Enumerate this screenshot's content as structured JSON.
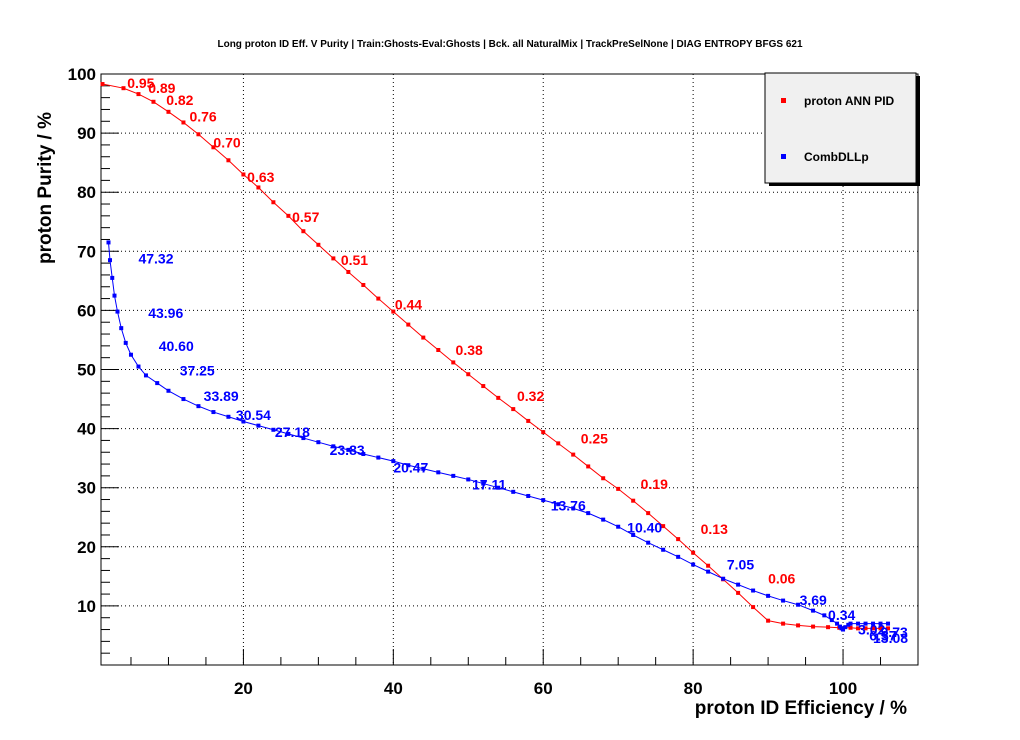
{
  "chart_data": {
    "type": "scatter",
    "title": "Long proton ID Eff. V Purity | Train:Ghosts-Eval:Ghosts | Bck. all NaturalMix | TrackPreSelNone | DIAG ENTROPY BFGS 621",
    "xlabel": "proton ID Efficiency / %",
    "ylabel": "proton Purity / %",
    "xlim": [
      1,
      110
    ],
    "ylim": [
      0,
      100
    ],
    "xticks": [
      20,
      40,
      60,
      80,
      100
    ],
    "yticks": [
      10,
      20,
      30,
      40,
      50,
      60,
      70,
      80,
      90,
      100
    ],
    "grid": true,
    "legend_position": "top-right",
    "series": [
      {
        "name": "proton ANN PID",
        "color": "#ff0000",
        "x": [
          1.2,
          4,
          6,
          8,
          10,
          12,
          14,
          16,
          18,
          20,
          22,
          24,
          26,
          28,
          30,
          32,
          34,
          36,
          38,
          40,
          42,
          44,
          46,
          48,
          50,
          52,
          54,
          56,
          58,
          60,
          62,
          64,
          66,
          68,
          70,
          72,
          74,
          76,
          78,
          80,
          82,
          84,
          86,
          88,
          90,
          92,
          94,
          96,
          98,
          99.5,
          101,
          102,
          103,
          104,
          105,
          106
        ],
        "y": [
          98.3,
          97.6,
          96.6,
          95.3,
          93.6,
          91.8,
          89.8,
          87.6,
          85.4,
          83.0,
          80.8,
          78.3,
          76.0,
          73.4,
          71.1,
          68.8,
          66.5,
          64.3,
          62.0,
          59.8,
          57.6,
          55.4,
          53.3,
          51.2,
          49.2,
          47.2,
          45.2,
          43.3,
          41.3,
          39.4,
          37.5,
          35.6,
          33.6,
          31.6,
          29.8,
          27.8,
          25.7,
          23.5,
          21.3,
          19.0,
          16.8,
          14.5,
          12.2,
          9.8,
          7.5,
          7.0,
          6.7,
          6.5,
          6.4,
          6.3,
          6.3,
          6.2,
          6.2,
          6.2,
          6.2,
          6.2
        ],
        "labels": [
          {
            "text": "0.95",
            "x": 4.5,
            "y": 98.5
          },
          {
            "text": "0.89",
            "x": 7.3,
            "y": 97.6
          },
          {
            "text": "0.82",
            "x": 9.7,
            "y": 95.6
          },
          {
            "text": "0.76",
            "x": 12.8,
            "y": 92.8
          },
          {
            "text": "0.70",
            "x": 16.0,
            "y": 88.4
          },
          {
            "text": "0.63",
            "x": 20.5,
            "y": 82.6
          },
          {
            "text": "0.57",
            "x": 26.5,
            "y": 75.8
          },
          {
            "text": "0.51",
            "x": 33.0,
            "y": 68.5
          },
          {
            "text": "0.44",
            "x": 40.2,
            "y": 61.0
          },
          {
            "text": "0.38",
            "x": 48.3,
            "y": 53.3
          },
          {
            "text": "0.32",
            "x": 56.5,
            "y": 45.5
          },
          {
            "text": "0.25",
            "x": 65.0,
            "y": 38.3
          },
          {
            "text": "0.19",
            "x": 73.0,
            "y": 30.6
          },
          {
            "text": "0.13",
            "x": 81.0,
            "y": 23.0
          },
          {
            "text": "0.06",
            "x": 90.0,
            "y": 14.6
          }
        ]
      },
      {
        "name": "CombDLLp",
        "color": "#0000ff",
        "x": [
          2.0,
          2.2,
          2.5,
          2.8,
          3.2,
          3.7,
          4.3,
          5.0,
          6.0,
          7.0,
          8.5,
          10,
          12,
          14,
          16,
          18,
          20,
          22,
          24,
          26,
          28,
          30,
          32,
          34,
          36,
          38,
          40,
          42,
          44,
          46,
          48,
          50,
          52,
          54,
          56,
          58,
          60,
          62,
          64,
          66,
          68,
          70,
          72,
          74,
          76,
          78,
          80,
          82,
          84,
          86,
          88,
          90,
          92,
          94,
          96,
          97.5,
          98.5,
          99.2,
          99.6,
          99.8,
          100,
          100.3,
          100.7,
          101,
          102,
          103,
          104,
          105,
          106
        ],
        "y": [
          71.5,
          68.5,
          65.5,
          62.5,
          59.8,
          57.0,
          54.5,
          52.5,
          50.5,
          49.0,
          47.7,
          46.4,
          45.0,
          43.8,
          42.8,
          42.0,
          41.2,
          40.5,
          39.8,
          39.1,
          38.4,
          37.7,
          37.0,
          36.4,
          35.7,
          35.1,
          34.5,
          33.8,
          33.2,
          32.6,
          32.0,
          31.4,
          30.7,
          30.0,
          29.3,
          28.6,
          27.9,
          27.2,
          26.5,
          25.7,
          24.6,
          23.4,
          22.0,
          20.7,
          19.5,
          18.3,
          17.0,
          15.8,
          14.6,
          13.6,
          12.6,
          11.7,
          10.9,
          10.2,
          9.2,
          8.4,
          7.6,
          7.0,
          6.5,
          6.2,
          6.0,
          6.4,
          6.8,
          7.0,
          7.0,
          7.0,
          7.0,
          7.0,
          7.0
        ],
        "labels": [
          {
            "text": "47.32",
            "x": 6.0,
            "y": 68.8
          },
          {
            "text": "43.96",
            "x": 7.3,
            "y": 59.6
          },
          {
            "text": "40.60",
            "x": 8.7,
            "y": 54.0
          },
          {
            "text": "37.25",
            "x": 11.5,
            "y": 49.8
          },
          {
            "text": "33.89",
            "x": 14.7,
            "y": 45.5
          },
          {
            "text": "30.54",
            "x": 19.0,
            "y": 42.3
          },
          {
            "text": "27.18",
            "x": 24.2,
            "y": 39.4
          },
          {
            "text": "23.83",
            "x": 31.5,
            "y": 36.4
          },
          {
            "text": "20.47",
            "x": 40.0,
            "y": 33.4
          },
          {
            "text": "17.11",
            "x": 50.5,
            "y": 30.5
          },
          {
            "text": "13.76",
            "x": 61.0,
            "y": 27.0
          },
          {
            "text": "10.40",
            "x": 71.2,
            "y": 23.3
          },
          {
            "text": "7.05",
            "x": 84.5,
            "y": 17.0
          },
          {
            "text": "3.69",
            "x": 94.2,
            "y": 11.0
          },
          {
            "text": "0.34",
            "x": 98.0,
            "y": 8.5
          },
          {
            "text": "3.02",
            "x": 102.0,
            "y": 6.0
          },
          {
            "text": "6.37",
            "x": 103.5,
            "y": 5.0
          },
          {
            "text": "9.73",
            "x": 105.0,
            "y": 5.6
          },
          {
            "text": "13.08",
            "x": 104.0,
            "y": 4.6
          }
        ]
      }
    ]
  }
}
